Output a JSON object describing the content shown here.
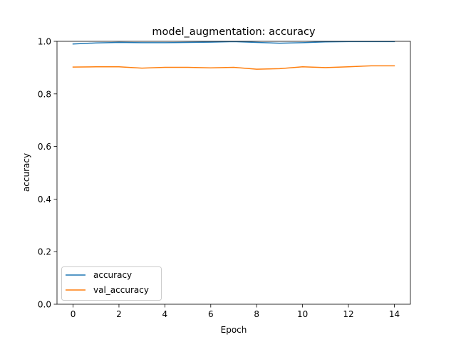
{
  "chart_data": {
    "type": "line",
    "title": "model_augmentation: accuracy",
    "xlabel": "Epoch",
    "ylabel": "accuracy",
    "xlim": [
      -0.7,
      14.7
    ],
    "ylim": [
      0.0,
      1.0
    ],
    "xticks": [
      0,
      2,
      4,
      6,
      8,
      10,
      12,
      14
    ],
    "yticks": [
      0.0,
      0.2,
      0.4,
      0.6,
      0.8,
      1.0
    ],
    "xtick_labels": [
      "0",
      "2",
      "4",
      "6",
      "8",
      "10",
      "12",
      "14"
    ],
    "ytick_labels": [
      "0.0",
      "0.2",
      "0.4",
      "0.6",
      "0.8",
      "1.0"
    ],
    "x": [
      0,
      1,
      2,
      3,
      4,
      5,
      6,
      7,
      8,
      9,
      10,
      11,
      12,
      13,
      14
    ],
    "series": [
      {
        "name": "accuracy",
        "color": "#1f77b4",
        "values": [
          0.99,
          0.994,
          0.996,
          0.995,
          0.995,
          0.996,
          0.997,
          0.999,
          0.996,
          0.993,
          0.995,
          0.998,
          0.999,
          0.999,
          0.999
        ]
      },
      {
        "name": "val_accuracy",
        "color": "#ff7f0e",
        "values": [
          0.902,
          0.903,
          0.903,
          0.898,
          0.901,
          0.901,
          0.899,
          0.901,
          0.894,
          0.896,
          0.903,
          0.9,
          0.903,
          0.907,
          0.907
        ]
      }
    ],
    "legend_position": "lower-left"
  }
}
